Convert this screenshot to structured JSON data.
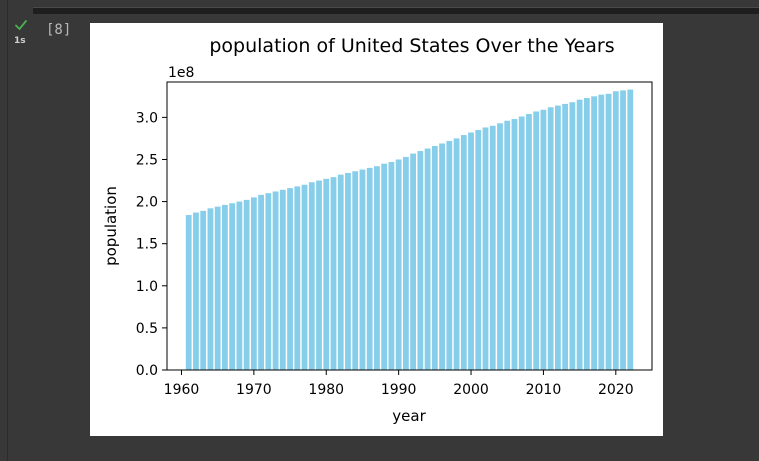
{
  "cell": {
    "exec_time": "1s",
    "exec_count": "[8]",
    "status_icon": "check-icon",
    "status_color": "#4caf50"
  },
  "chart_data": {
    "type": "bar",
    "title": "population of United States Over the Years",
    "xlabel": "year",
    "ylabel": "population",
    "offset_label": "1e8",
    "bar_color": "#87ceeb",
    "xlim": [
      1958,
      2025
    ],
    "ylim": [
      0,
      3.42
    ],
    "x_ticks": [
      1960,
      1970,
      1980,
      1990,
      2000,
      2010,
      2020
    ],
    "y_ticks": [
      "0.0",
      "0.5",
      "1.0",
      "1.5",
      "2.0",
      "2.5",
      "3.0"
    ],
    "y_tick_values": [
      0,
      0.5,
      1.0,
      1.5,
      2.0,
      2.5,
      3.0
    ],
    "x": [
      1961,
      1962,
      1963,
      1964,
      1965,
      1966,
      1967,
      1968,
      1969,
      1970,
      1971,
      1972,
      1973,
      1974,
      1975,
      1976,
      1977,
      1978,
      1979,
      1980,
      1981,
      1982,
      1983,
      1984,
      1985,
      1986,
      1987,
      1988,
      1989,
      1990,
      1991,
      1992,
      1993,
      1994,
      1995,
      1996,
      1997,
      1998,
      1999,
      2000,
      2001,
      2002,
      2003,
      2004,
      2005,
      2006,
      2007,
      2008,
      2009,
      2010,
      2011,
      2012,
      2013,
      2014,
      2015,
      2016,
      2017,
      2018,
      2019,
      2020,
      2021,
      2022
    ],
    "values": [
      1.84,
      1.87,
      1.89,
      1.92,
      1.94,
      1.96,
      1.98,
      2.0,
      2.02,
      2.05,
      2.08,
      2.1,
      2.12,
      2.14,
      2.16,
      2.18,
      2.2,
      2.23,
      2.25,
      2.27,
      2.29,
      2.32,
      2.34,
      2.36,
      2.38,
      2.4,
      2.42,
      2.45,
      2.47,
      2.5,
      2.53,
      2.57,
      2.6,
      2.63,
      2.66,
      2.69,
      2.72,
      2.75,
      2.79,
      2.82,
      2.85,
      2.88,
      2.9,
      2.93,
      2.96,
      2.98,
      3.01,
      3.04,
      3.07,
      3.09,
      3.12,
      3.14,
      3.16,
      3.18,
      3.21,
      3.23,
      3.25,
      3.27,
      3.28,
      3.31,
      3.32,
      3.33
    ]
  }
}
